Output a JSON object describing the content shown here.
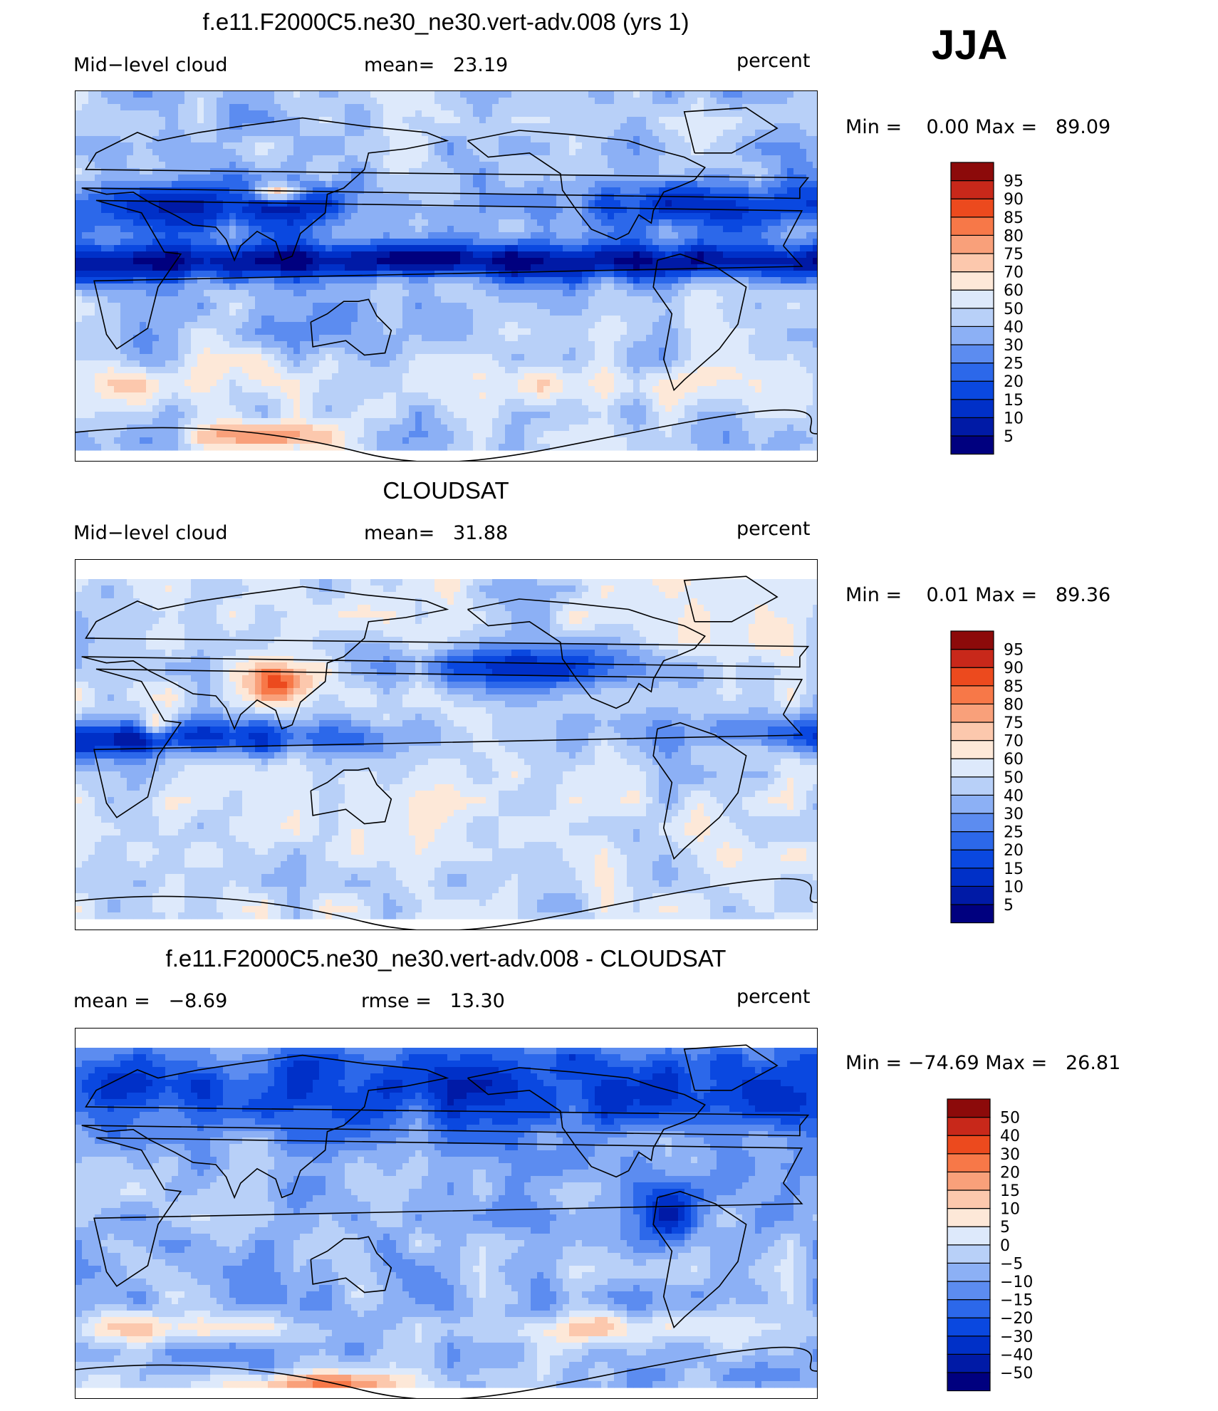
{
  "season_label": "JJA",
  "palettes": {
    "level": [
      "#00007f",
      "#001aa6",
      "#0030c8",
      "#0a48e0",
      "#2c68ea",
      "#5c8cf0",
      "#8cb0f5",
      "#b8d0f8",
      "#dde9fb",
      "#fde8d8",
      "#fcc8ad",
      "#f9a07a",
      "#f77848",
      "#ec4a1e",
      "#c8281a",
      "#8c0a0a"
    ],
    "diff": [
      "#00007f",
      "#001aa6",
      "#0030c8",
      "#0a48e0",
      "#2c68ea",
      "#5c8cf0",
      "#8cb0f5",
      "#b8d0f8",
      "#dde9fb",
      "#fde8d8",
      "#fcc8ad",
      "#f9a07a",
      "#f77848",
      "#ec4a1e",
      "#c8281a",
      "#8c0a0a"
    ]
  },
  "chart_data": [
    {
      "type": "heatmap",
      "title": "f.e11.F2000C5.ne30_ne30.vert-adv.008 (yrs 1)",
      "left_label": "Mid−level cloud",
      "center_label": "mean=   23.19",
      "right_label": "percent",
      "field_label": "Mid-level cloud",
      "units": "percent",
      "mean": 23.19,
      "min_max_text": "Min =    0.00 Max =   89.09",
      "min": 0.0,
      "max": 89.09,
      "colorbar_levels": [
        "95",
        "90",
        "85",
        "80",
        "75",
        "70",
        "60",
        "50",
        "40",
        "30",
        "25",
        "20",
        "15",
        "10",
        "5"
      ],
      "palette": "level",
      "map_seed": 11
    },
    {
      "type": "heatmap",
      "title": "CLOUDSAT",
      "left_label": "Mid−level cloud",
      "center_label": "mean=   31.88",
      "right_label": "percent",
      "field_label": "Mid-level cloud",
      "units": "percent",
      "mean": 31.88,
      "min_max_text": "Min =    0.01 Max =   89.36",
      "min": 0.01,
      "max": 89.36,
      "colorbar_levels": [
        "95",
        "90",
        "85",
        "80",
        "75",
        "70",
        "60",
        "50",
        "40",
        "30",
        "25",
        "20",
        "15",
        "10",
        "5"
      ],
      "palette": "level",
      "map_seed": 23
    },
    {
      "type": "heatmap",
      "title": "f.e11.F2000C5.ne30_ne30.vert-adv.008 - CLOUDSAT",
      "left_label": "mean =   −8.69",
      "center_label": "rmse =   13.30",
      "right_label": "percent",
      "units": "percent",
      "mean": -8.69,
      "rmse": 13.3,
      "min_max_text": "Min = −74.69 Max =   26.81",
      "min": -74.69,
      "max": 26.81,
      "colorbar_levels": [
        "50",
        "40",
        "30",
        "20",
        "15",
        "10",
        "5",
        "0",
        "−5",
        "−10",
        "−15",
        "−20",
        "−30",
        "−40",
        "−50"
      ],
      "palette": "diff",
      "map_seed": 37
    }
  ]
}
